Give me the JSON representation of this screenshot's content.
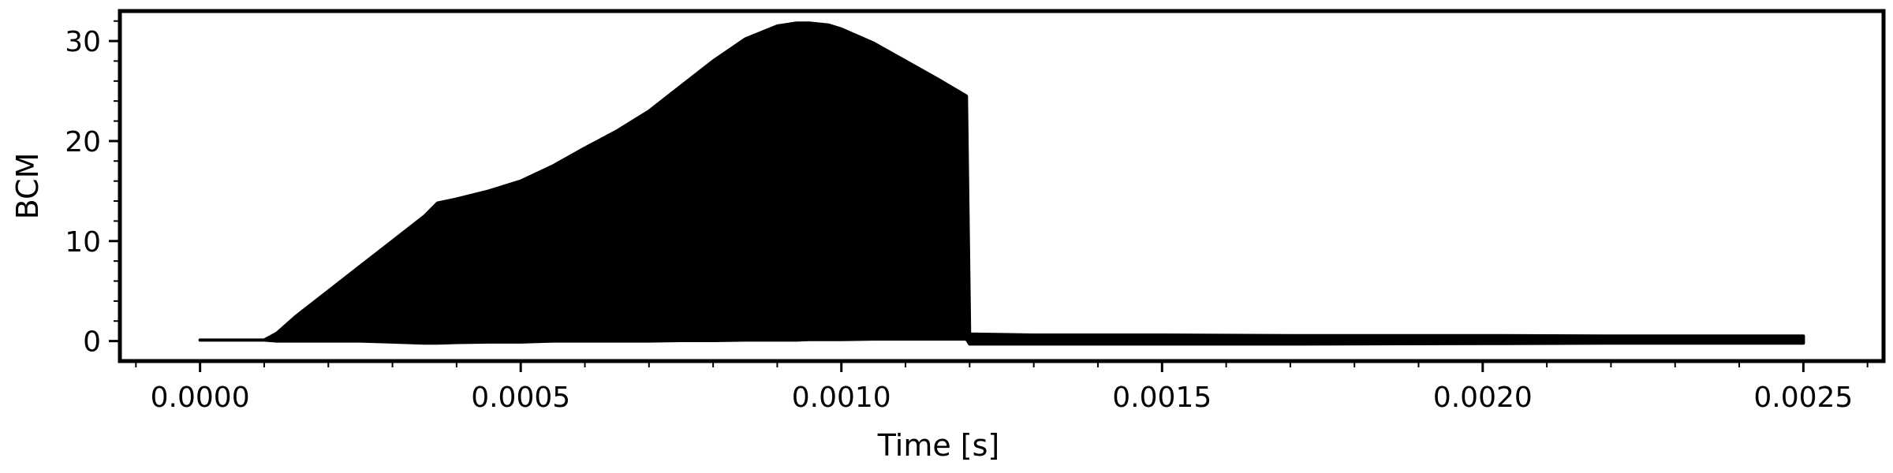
{
  "chart_data": {
    "type": "area",
    "title": "",
    "xlabel": "Time [s]",
    "ylabel": "BCM",
    "xlim": [
      -0.000125,
      0.002625
    ],
    "ylim": [
      -2,
      33
    ],
    "x_ticks": [
      0.0,
      0.0005,
      0.001,
      0.0015,
      0.002,
      0.0025
    ],
    "x_tick_labels": [
      "0.0000",
      "0.0005",
      "0.0010",
      "0.0015",
      "0.0020",
      "0.0025"
    ],
    "y_ticks": [
      0,
      10,
      20,
      30
    ],
    "y_tick_labels": [
      "0",
      "10",
      "20",
      "30"
    ],
    "grid": false,
    "legend": "none",
    "series": [
      {
        "color": "#000000",
        "x": [
          0.0,
          0.0001,
          0.00012,
          0.00015,
          0.0002,
          0.00025,
          0.0003,
          0.00035,
          0.00037,
          0.0004,
          0.00045,
          0.0005,
          0.00055,
          0.0006,
          0.00065,
          0.0007,
          0.00075,
          0.0008,
          0.00085,
          0.0009,
          0.00093,
          0.00095,
          0.00098,
          0.001,
          0.00105,
          0.0011,
          0.00115,
          0.001195,
          0.0012,
          0.0013,
          0.0015,
          0.0017,
          0.002,
          0.0022,
          0.0025
        ],
        "upper": [
          0.1,
          0.1,
          0.8,
          2.5,
          5.0,
          7.5,
          10.0,
          12.5,
          13.8,
          14.2,
          15.0,
          16.0,
          17.5,
          19.3,
          21.0,
          23.0,
          25.5,
          28.0,
          30.2,
          31.5,
          31.8,
          31.8,
          31.6,
          31.2,
          29.8,
          28.0,
          26.2,
          24.5,
          0.7,
          0.6,
          0.6,
          0.55,
          0.55,
          0.5,
          0.5
        ],
        "lower": [
          0.1,
          0.1,
          0.0,
          0.0,
          0.0,
          0.0,
          -0.1,
          -0.2,
          -0.2,
          -0.15,
          -0.1,
          -0.1,
          0.0,
          0.0,
          0.0,
          0.0,
          0.05,
          0.05,
          0.1,
          0.1,
          0.1,
          0.15,
          0.15,
          0.15,
          0.2,
          0.2,
          0.2,
          0.2,
          -0.3,
          -0.3,
          -0.3,
          -0.3,
          -0.25,
          -0.2,
          -0.2
        ]
      }
    ]
  }
}
